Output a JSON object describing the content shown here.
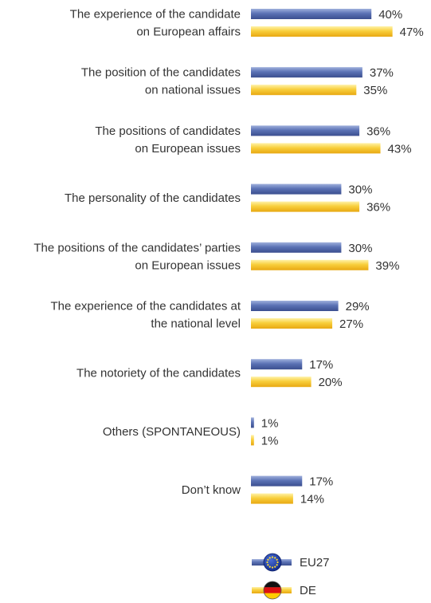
{
  "chart_data": {
    "type": "bar",
    "orientation": "horizontal",
    "unit": "%",
    "categories": [
      [
        "The experience of the candidate",
        "on European affairs"
      ],
      [
        "The position of the candidates",
        "on national issues"
      ],
      [
        "The positions of candidates",
        "on European issues"
      ],
      [
        "The personality of the candidates"
      ],
      [
        "The positions of the candidates’ parties",
        "on European issues"
      ],
      [
        "The experience of the candidates at",
        "the national level"
      ],
      [
        "The notoriety of the candidates"
      ],
      [
        "Others (SPONTANEOUS)"
      ],
      [
        "Don’t know"
      ]
    ],
    "series": [
      {
        "name": "EU27",
        "color": "#5b72b5",
        "values": [
          40,
          37,
          36,
          30,
          30,
          29,
          17,
          1,
          17
        ]
      },
      {
        "name": "DE",
        "color": "#f2c12e",
        "values": [
          47,
          35,
          43,
          36,
          39,
          27,
          20,
          1,
          14
        ]
      }
    ],
    "xlim": [
      0,
      50
    ],
    "grid": false,
    "legend_position": "bottom-center"
  }
}
